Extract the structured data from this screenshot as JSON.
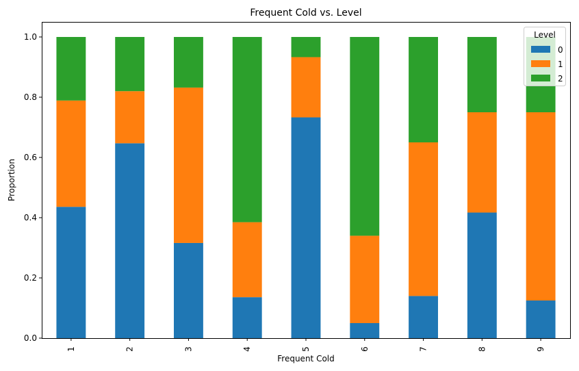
{
  "chart_data": {
    "type": "bar",
    "stacked": true,
    "title": "Frequent Cold vs. Level",
    "xlabel": "Frequent Cold",
    "ylabel": "Proportion",
    "ylim": [
      0,
      1.05
    ],
    "yticks": [
      "0.0",
      "0.2",
      "0.4",
      "0.6",
      "0.8",
      "1.0"
    ],
    "categories": [
      "1",
      "2",
      "3",
      "4",
      "5",
      "6",
      "7",
      "8",
      "9"
    ],
    "series": [
      {
        "name": "0",
        "color": "#1f77b4",
        "values": [
          0.436,
          0.647,
          0.316,
          0.136,
          0.733,
          0.05,
          0.14,
          0.417,
          0.125
        ]
      },
      {
        "name": "1",
        "color": "#ff7f0e",
        "values": [
          0.353,
          0.173,
          0.516,
          0.249,
          0.2,
          0.29,
          0.51,
          0.333,
          0.625
        ]
      },
      {
        "name": "2",
        "color": "#2ca02c",
        "values": [
          0.211,
          0.18,
          0.168,
          0.615,
          0.067,
          0.66,
          0.35,
          0.25,
          0.25
        ]
      }
    ],
    "legend": {
      "title": "Level",
      "placement": "top-right"
    },
    "grid": false
  }
}
